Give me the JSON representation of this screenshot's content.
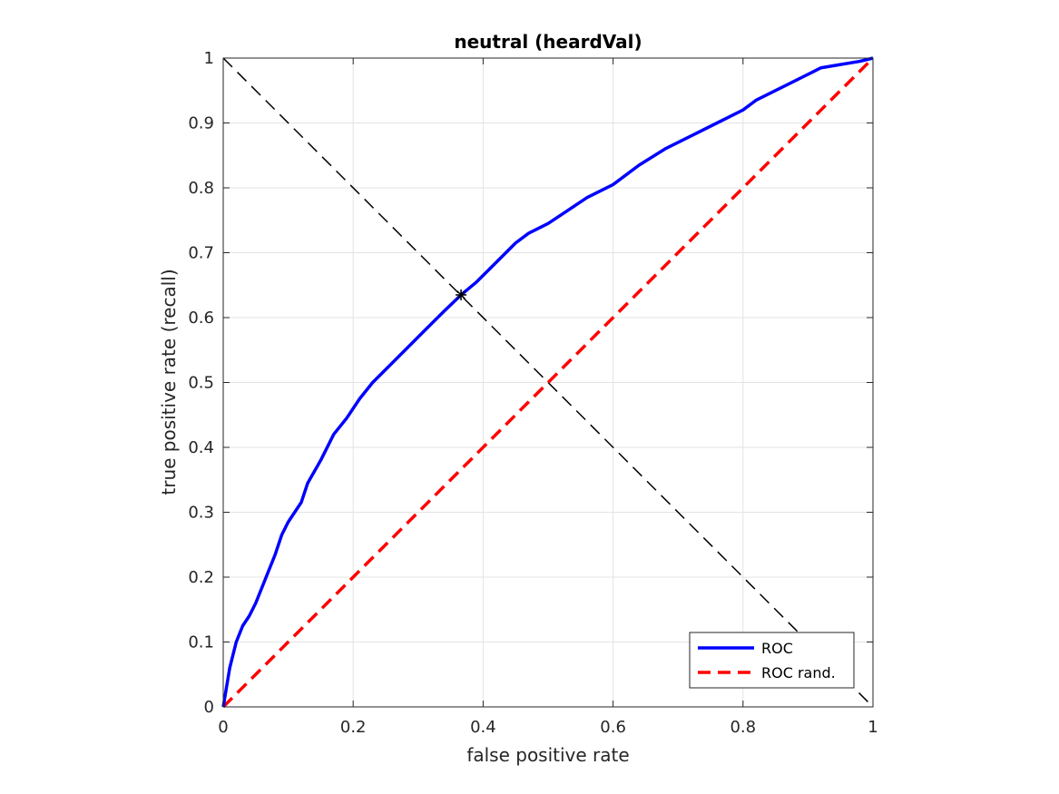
{
  "chart_data": {
    "type": "line",
    "title": "neutral (heardVal)",
    "xlabel": "false positive rate",
    "ylabel": "true positive rate (recall)",
    "xlim": [
      0,
      1
    ],
    "ylim": [
      0,
      1
    ],
    "grid": true,
    "x_ticks": [
      "0",
      "0.2",
      "0.4",
      "0.6",
      "0.8",
      "1"
    ],
    "y_ticks": [
      "0",
      "0.1",
      "0.2",
      "0.3",
      "0.4",
      "0.5",
      "0.6",
      "0.7",
      "0.8",
      "0.9",
      "1"
    ],
    "legend_position": "bottom-right",
    "series": [
      {
        "name": "ROC",
        "color": "#0000ff",
        "style": "solid",
        "x": [
          0,
          0.005,
          0.01,
          0.02,
          0.03,
          0.04,
          0.05,
          0.06,
          0.07,
          0.08,
          0.09,
          0.1,
          0.11,
          0.12,
          0.13,
          0.15,
          0.17,
          0.19,
          0.21,
          0.23,
          0.25,
          0.28,
          0.31,
          0.34,
          0.366,
          0.39,
          0.42,
          0.45,
          0.47,
          0.5,
          0.53,
          0.56,
          0.6,
          0.64,
          0.68,
          0.72,
          0.76,
          0.8,
          0.82,
          0.84,
          0.86,
          0.88,
          0.9,
          0.92,
          0.95,
          0.98,
          1.0
        ],
        "y": [
          0,
          0.03,
          0.06,
          0.1,
          0.125,
          0.14,
          0.16,
          0.185,
          0.21,
          0.235,
          0.265,
          0.285,
          0.3,
          0.315,
          0.345,
          0.38,
          0.42,
          0.445,
          0.475,
          0.5,
          0.52,
          0.55,
          0.58,
          0.61,
          0.635,
          0.655,
          0.685,
          0.715,
          0.73,
          0.745,
          0.765,
          0.785,
          0.805,
          0.835,
          0.86,
          0.88,
          0.9,
          0.92,
          0.935,
          0.945,
          0.955,
          0.965,
          0.975,
          0.985,
          0.99,
          0.995,
          1.0
        ]
      },
      {
        "name": "ROC rand.",
        "color": "#ff0000",
        "style": "dashed",
        "x": [
          0,
          1
        ],
        "y": [
          0,
          1
        ]
      }
    ],
    "reference_line": {
      "x": [
        0,
        1
      ],
      "y": [
        1,
        0
      ],
      "color": "#000000",
      "style": "dashed"
    },
    "marker": {
      "x": 0.366,
      "y": 0.635,
      "symbol": "star",
      "color": "#000000"
    }
  }
}
